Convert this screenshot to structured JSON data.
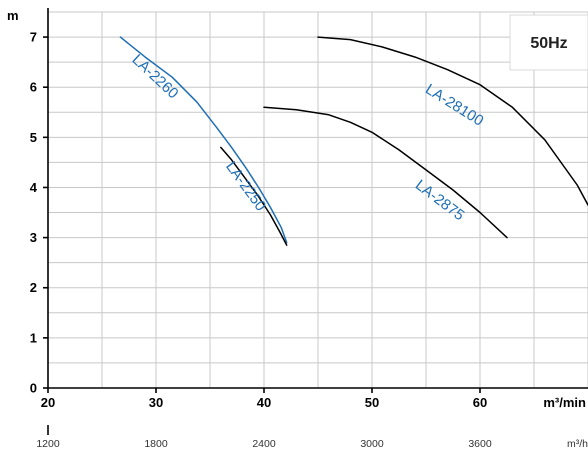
{
  "chart_data": {
    "type": "line",
    "badge": "50Hz",
    "y_unit": "m",
    "x_unit": "m³/min",
    "x2_unit": "m³/h",
    "xlim": [
      20,
      70
    ],
    "ylim": [
      0,
      7.5
    ],
    "x_ticks": [
      20,
      30,
      40,
      50,
      60
    ],
    "y_ticks": [
      0,
      1,
      2,
      3,
      4,
      5,
      6,
      7
    ],
    "x2_ticks": [
      1200,
      1800,
      2400,
      3000,
      3600
    ],
    "grid": true,
    "series": [
      {
        "name": "LA-2260",
        "color": "#1f6fb5",
        "x": [
          26.7,
          29.0,
          31.5,
          33.8,
          35.6,
          37.0,
          38.3,
          39.5,
          40.6,
          41.6,
          42.1
        ],
        "y": [
          7.0,
          6.6,
          6.2,
          5.7,
          5.2,
          4.8,
          4.4,
          4.0,
          3.6,
          3.2,
          2.9
        ]
      },
      {
        "name": "LA-2250",
        "color": "#000000",
        "x": [
          36.0,
          37.0,
          38.2,
          39.4,
          40.6,
          41.5,
          42.1
        ],
        "y": [
          4.8,
          4.55,
          4.2,
          3.85,
          3.45,
          3.1,
          2.85
        ]
      },
      {
        "name": "LA-2875",
        "color": "#000000",
        "x": [
          40.0,
          43.0,
          46.0,
          48.0,
          50.0,
          52.5,
          55.0,
          57.5,
          60.0,
          62.5
        ],
        "y": [
          5.6,
          5.55,
          5.45,
          5.3,
          5.1,
          4.75,
          4.35,
          3.95,
          3.5,
          3.0
        ]
      },
      {
        "name": "LA-28100",
        "color": "#000000",
        "x": [
          45.0,
          48.0,
          51.0,
          54.0,
          57.0,
          60.0,
          63.0,
          66.0,
          69.0,
          70.0
        ],
        "y": [
          7.0,
          6.95,
          6.8,
          6.6,
          6.35,
          6.05,
          5.6,
          4.95,
          4.05,
          3.65
        ]
      }
    ]
  }
}
